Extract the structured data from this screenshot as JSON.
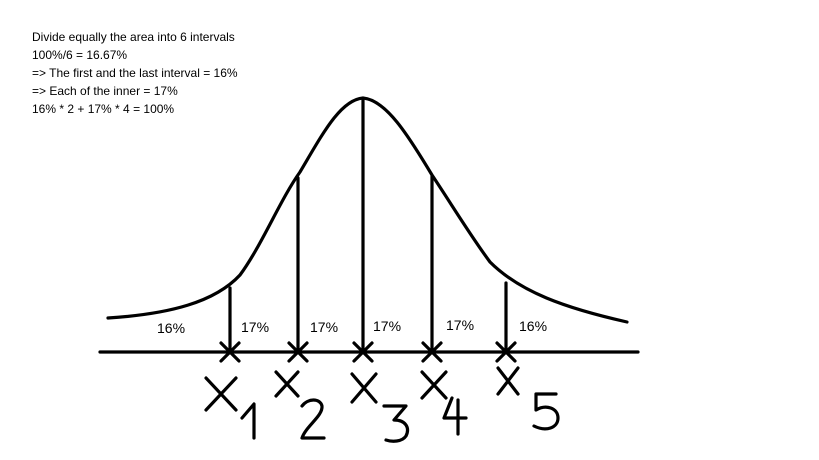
{
  "notes": [
    "Divide equally the area into 6 intervals",
    "100%/6 = 16.67%",
    "=> The first and the last interval = 16%",
    "=> Each of the inner = 17%",
    "16% * 2 + 17% * 4 = 100%"
  ],
  "intervals": [
    "16%",
    "17%",
    "17%",
    "17%",
    "17%",
    "16%"
  ],
  "cut_points": [
    "X1",
    "X2",
    "X3",
    "X4",
    "X5"
  ]
}
